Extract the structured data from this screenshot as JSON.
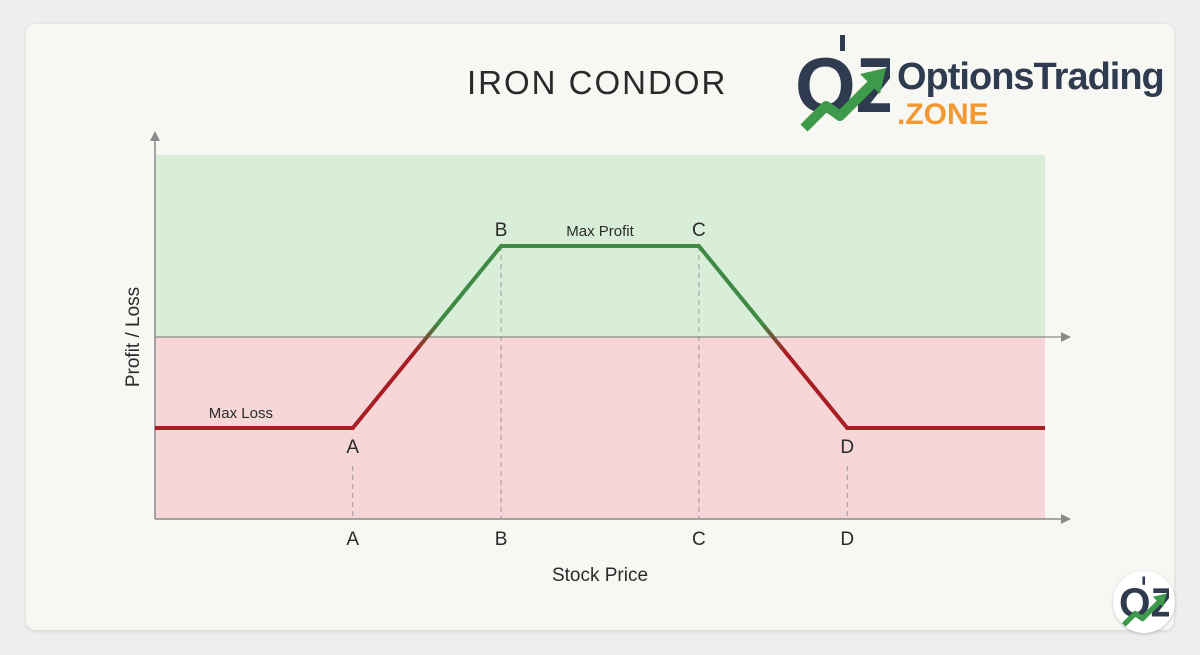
{
  "brand": {
    "name_line1": "OptionsTrading",
    "name_line2": ".ZONE",
    "mark_text": "OZ",
    "colors": {
      "navy": "#2f3b4e",
      "orange": "#f19a33",
      "green": "#3c9a4a"
    }
  },
  "chart_data": {
    "type": "line",
    "title": "IRON CONDOR",
    "xlabel": "Stock Price",
    "ylabel": "Profit / Loss",
    "xlim": [
      0,
      9
    ],
    "ylim": [
      -1,
      1
    ],
    "x_ticks": [
      {
        "x": 2,
        "label": "A"
      },
      {
        "x": 3.5,
        "label": "B"
      },
      {
        "x": 5.5,
        "label": "C"
      },
      {
        "x": 7,
        "label": "D"
      }
    ],
    "series": [
      {
        "points": [
          {
            "x": 0,
            "y": -0.5
          },
          {
            "x": 2,
            "y": -0.5
          },
          {
            "x": 3.5,
            "y": 0.5
          },
          {
            "x": 5.5,
            "y": 0.5
          },
          {
            "x": 7,
            "y": -0.5
          },
          {
            "x": 9,
            "y": -0.5
          }
        ]
      }
    ],
    "point_labels": [
      {
        "x": 2,
        "y": -0.5,
        "label": "A",
        "position": "below"
      },
      {
        "x": 3.5,
        "y": 0.5,
        "label": "B",
        "position": "above"
      },
      {
        "x": 5.5,
        "y": 0.5,
        "label": "C",
        "position": "above"
      },
      {
        "x": 7,
        "y": -0.5,
        "label": "D",
        "position": "below"
      }
    ],
    "annotations": [
      {
        "text": "Max Profit",
        "x": 4.5,
        "y": 0.5,
        "position": "above"
      },
      {
        "text": "Max Loss",
        "x": 1,
        "y": -0.5,
        "position": "above"
      }
    ],
    "regions": [
      {
        "name": "profit",
        "from": 0,
        "to": 1,
        "color": "#d8eed8"
      },
      {
        "name": "loss",
        "from": -1,
        "to": 0,
        "color": "#f6d6d6"
      }
    ],
    "colors": {
      "profit_line": "#3e8a45",
      "loss_line": "#a81e25",
      "axis": "#8a8a8a"
    },
    "grid": false,
    "legend": "none"
  }
}
